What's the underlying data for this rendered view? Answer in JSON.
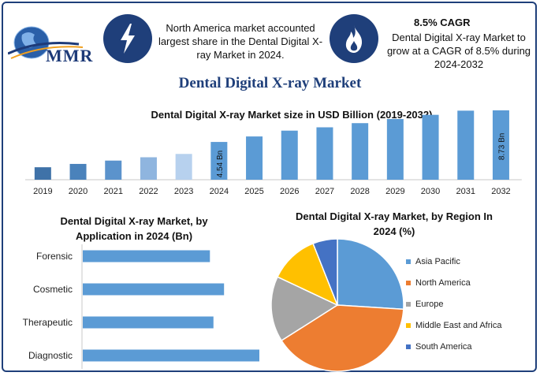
{
  "header": {
    "logo_text": "MMR",
    "info1_text": "North America market accounted largest share in the Dental Digital X-ray Market in 2024.",
    "info2_heading": "8.5% CAGR",
    "info2_text": "Dental Digital X-ray Market to grow at a CAGR of 8.5% during 2024-2032"
  },
  "title": "Dental Digital X-ray Market",
  "chart_data": [
    {
      "type": "bar",
      "title": "Dental Digital X-ray Market size in USD Billion (2019-2032)",
      "categories": [
        "2019",
        "2020",
        "2021",
        "2022",
        "2023",
        "2024",
        "2025",
        "2026",
        "2027",
        "2028",
        "2029",
        "2030",
        "2031",
        "2032"
      ],
      "values": [
        1.5,
        1.9,
        2.3,
        2.7,
        3.1,
        4.54,
        5.2,
        5.9,
        6.3,
        6.8,
        7.3,
        7.8,
        8.3,
        8.73
      ],
      "bar_labels": {
        "2024": "4.54 Bn",
        "2032": "8.73 Bn"
      },
      "colors": {
        "2019": "#3f72a8",
        "2020": "#4a82bb",
        "2021": "#5b93cc",
        "2022": "#8fb5df",
        "2023": "#b7d1ee",
        "default": "#5b9bd5"
      }
    },
    {
      "type": "bar",
      "orientation": "horizontal",
      "title": "Dental Digital X-ray Market, by Application in 2024 (Bn)",
      "categories": [
        "Forensic",
        "Cosmetic",
        "Therapeutic",
        "Diagnostic"
      ],
      "values": [
        0.72,
        0.8,
        0.74,
        1.0
      ],
      "color": "#5b9bd5"
    },
    {
      "type": "pie",
      "title": "Dental Digital X-ray Market, by Region In 2024 (%)",
      "labels": [
        "Asia Pacific",
        "North America",
        "Europe",
        "Middle East and Africa",
        "South America"
      ],
      "values": [
        26,
        40,
        16,
        12,
        6
      ],
      "colors": [
        "#5b9bd5",
        "#ed7d31",
        "#a5a5a5",
        "#ffc000",
        "#4472c4"
      ],
      "legend_position": "right"
    }
  ]
}
